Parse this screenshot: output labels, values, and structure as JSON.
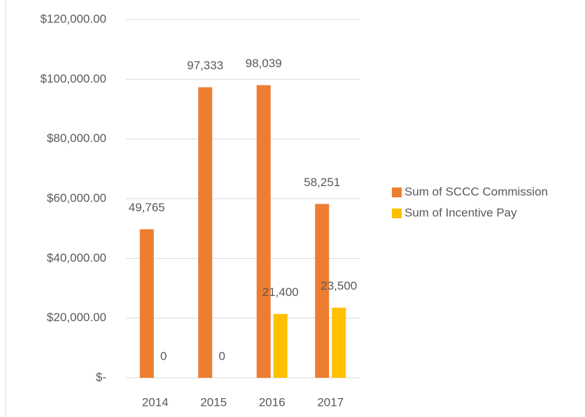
{
  "chart_data": {
    "type": "bar",
    "categories": [
      "2014",
      "2015",
      "2016",
      "2017"
    ],
    "series": [
      {
        "name": "Sum of SCCC Commission",
        "color": "#ed7d31",
        "values": [
          49765,
          97333,
          98039,
          58251
        ],
        "value_labels": [
          "49,765",
          "97,333",
          "98,039",
          "58,251"
        ]
      },
      {
        "name": "Sum of Incentive Pay",
        "color": "#ffc000",
        "values": [
          0,
          0,
          21400,
          23500
        ],
        "value_labels": [
          "0",
          "0",
          "21,400",
          "23,500"
        ]
      }
    ],
    "ylim": [
      0,
      120000
    ],
    "yticks": [
      {
        "value": 0,
        "label": "$-"
      },
      {
        "value": 20000,
        "label": "$20,000.00"
      },
      {
        "value": 40000,
        "label": "$40,000.00"
      },
      {
        "value": 60000,
        "label": "$60,000.00"
      },
      {
        "value": 80000,
        "label": "$80,000.00"
      },
      {
        "value": 100000,
        "label": "$100,000.00"
      },
      {
        "value": 120000,
        "label": "$120,000.00"
      }
    ],
    "grid": true,
    "legend": "right"
  }
}
